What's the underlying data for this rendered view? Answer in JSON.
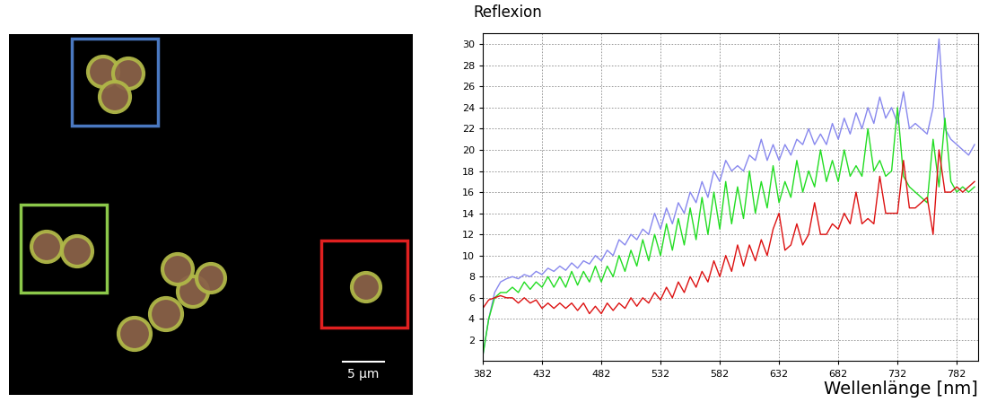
{
  "image": {
    "scale_bar": "5 µm"
  },
  "chart_data": {
    "type": "line",
    "y_label": "Reflexion",
    "x_label": "Wellenlänge [nm]",
    "x": [
      382,
      387,
      392,
      397,
      402,
      407,
      412,
      417,
      422,
      427,
      432,
      437,
      442,
      447,
      452,
      457,
      462,
      467,
      472,
      477,
      482,
      487,
      492,
      497,
      502,
      507,
      512,
      517,
      522,
      527,
      532,
      537,
      542,
      547,
      552,
      557,
      562,
      567,
      572,
      577,
      582,
      587,
      592,
      597,
      602,
      607,
      612,
      617,
      622,
      627,
      632,
      637,
      642,
      647,
      652,
      657,
      662,
      667,
      672,
      677,
      682,
      687,
      692,
      697,
      702,
      707,
      712,
      717,
      722,
      727,
      732,
      737,
      742,
      747,
      752,
      757,
      762,
      767,
      772,
      777,
      782,
      787,
      792,
      797
    ],
    "series": [
      {
        "color": "#8888ee",
        "values": [
          0.5,
          4,
          6.5,
          7.5,
          7.8,
          8,
          7.8,
          8.2,
          8,
          8.5,
          8.2,
          8.8,
          8.5,
          9,
          8.6,
          9.3,
          8.8,
          9.5,
          9.2,
          10,
          9.5,
          10.5,
          10,
          11.5,
          11,
          12,
          11.5,
          12.5,
          12,
          14,
          12.5,
          14.5,
          13,
          15,
          14,
          16,
          15,
          17,
          15.5,
          18,
          17,
          19,
          18,
          18.5,
          18,
          19.5,
          19,
          21,
          19,
          20.5,
          19,
          20.5,
          19.5,
          21,
          20.5,
          22,
          20.5,
          21.5,
          20.5,
          22.5,
          21,
          23,
          21.5,
          23.5,
          22,
          24,
          22.5,
          25,
          23,
          24,
          22.5,
          25.5,
          22,
          22.5,
          22,
          21.5,
          24,
          30.5,
          22,
          21,
          20.5,
          20,
          19.5,
          20.5
        ]
      },
      {
        "color": "#22dd22",
        "values": [
          0.5,
          4,
          6,
          6.5,
          6.5,
          7,
          6.5,
          7.5,
          6.8,
          7.5,
          7,
          8,
          7,
          8,
          7,
          8.5,
          7.2,
          8.5,
          7.5,
          9,
          7.5,
          9,
          8,
          10,
          8.5,
          10.5,
          9,
          11.5,
          9.5,
          12,
          10,
          13,
          10.5,
          13.5,
          11,
          14.5,
          11.5,
          15.5,
          12,
          16,
          12.5,
          17,
          13,
          16.5,
          13.5,
          18,
          14,
          17,
          14.5,
          18.5,
          15,
          17,
          15.5,
          19,
          16,
          18,
          16.5,
          20,
          17,
          19,
          17,
          20,
          17.5,
          18.5,
          17.5,
          22,
          18,
          19,
          17.5,
          18,
          24,
          17.5,
          16.5,
          16,
          15.5,
          15,
          21,
          16.5,
          23,
          17,
          16,
          16.5,
          16,
          16.5
        ]
      },
      {
        "color": "#dd1111",
        "values": [
          5,
          5.8,
          6,
          6.2,
          6,
          6,
          5.5,
          6,
          5.5,
          5.8,
          5,
          5.5,
          5,
          5.5,
          5,
          5.5,
          4.8,
          5.5,
          4.5,
          5.2,
          4.5,
          5.5,
          4.8,
          5.5,
          5,
          6,
          5.2,
          6,
          5.5,
          6.5,
          5.8,
          7,
          6,
          7.5,
          6.5,
          8,
          7,
          8.5,
          7.5,
          9.5,
          8,
          10,
          8.5,
          11,
          9,
          11,
          9.5,
          11.5,
          10,
          12.5,
          14,
          10.5,
          11,
          13,
          11,
          12,
          15,
          12,
          12,
          13,
          12.5,
          14,
          13,
          16,
          13,
          13.5,
          13,
          17.5,
          14,
          14,
          14,
          19,
          14.5,
          14.5,
          15,
          15.5,
          12,
          20,
          16,
          16,
          16.5,
          16,
          16.5,
          17
        ]
      }
    ],
    "xlim": [
      382,
      800
    ],
    "xticks": [
      382,
      432,
      482,
      532,
      582,
      632,
      682,
      732,
      782
    ],
    "ylim": [
      0,
      31
    ],
    "yticks": [
      2,
      4,
      6,
      8,
      10,
      12,
      14,
      16,
      18,
      20,
      22,
      24,
      26,
      28,
      30
    ],
    "grid": true
  }
}
